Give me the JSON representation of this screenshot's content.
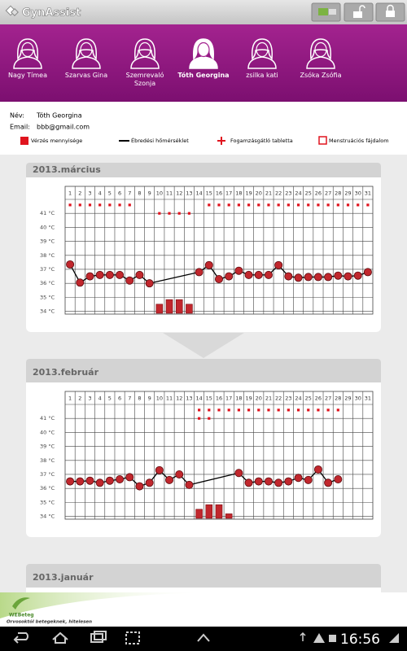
{
  "header": {
    "app_name": "GynAssist"
  },
  "tabs": [
    {
      "name": "Nagy Tímea"
    },
    {
      "name": "Szarvas Gina"
    },
    {
      "name": "Szemrevaló Szonja"
    },
    {
      "name": "Tóth Georgina"
    },
    {
      "name": "zsilka kati"
    },
    {
      "name": "Zsóka Zsófia"
    }
  ],
  "selected_tab": 3,
  "profile": {
    "name_label": "Név:",
    "name": "Tóth Georgina",
    "email_label": "Email:",
    "email": "bbb@gmail.com"
  },
  "legend": [
    {
      "label": "Vérzés mennyisége"
    },
    {
      "label": "Ébredési hőmérséklet"
    },
    {
      "label": "Fogamzásgátló tabletta"
    },
    {
      "label": "Menstruációs fájdalom"
    }
  ],
  "chart_data": [
    {
      "type": "line",
      "title": "2013.március",
      "x": [
        1,
        2,
        3,
        4,
        5,
        6,
        7,
        8,
        9,
        10,
        11,
        12,
        13,
        14,
        15,
        16,
        17,
        18,
        19,
        20,
        21,
        22,
        23,
        24,
        25,
        26,
        27,
        28,
        29,
        30,
        31
      ],
      "temperature": [
        37.35,
        36.05,
        36.5,
        36.6,
        36.6,
        36.6,
        36.2,
        36.6,
        36.0,
        null,
        null,
        null,
        null,
        36.8,
        37.3,
        36.3,
        36.5,
        36.9,
        36.6,
        36.6,
        36.6,
        37.3,
        36.5,
        36.4,
        36.45,
        36.45,
        36.45,
        36.55,
        36.5,
        36.55,
        36.8
      ],
      "bleeding": [
        null,
        null,
        null,
        null,
        null,
        null,
        null,
        null,
        null,
        2,
        3,
        3,
        2,
        null,
        null,
        null,
        null,
        null,
        null,
        null,
        null,
        null,
        null,
        null,
        null,
        null,
        null,
        null,
        null,
        null,
        null
      ],
      "tablet_days": [
        1,
        2,
        3,
        4,
        5,
        6,
        7,
        15,
        16,
        17,
        18,
        19,
        20,
        21,
        22,
        23,
        24,
        25,
        26,
        27,
        28,
        29,
        30,
        31
      ],
      "pain_days": [
        10,
        11,
        12,
        13
      ],
      "ylim": [
        33.8,
        42
      ],
      "yticks": [
        {
          "value": 34,
          "label": "34 °C"
        },
        {
          "value": 35,
          "label": "35 °C"
        },
        {
          "value": 36,
          "label": "36 °C"
        },
        {
          "value": 37,
          "label": "37 °C"
        },
        {
          "value": 38,
          "label": "38 °C"
        },
        {
          "value": 39,
          "label": "39 °C"
        },
        {
          "value": 40,
          "label": "40 °C"
        },
        {
          "value": 41,
          "label": "41 °C"
        }
      ],
      "grid": true,
      "point_color": "#c1272d",
      "line_color": "#000000",
      "bar_color": "#c1272d",
      "marker_color": "#e0141e"
    },
    {
      "type": "line",
      "title": "2013.február",
      "x": [
        1,
        2,
        3,
        4,
        5,
        6,
        7,
        8,
        9,
        10,
        11,
        12,
        13,
        14,
        15,
        16,
        17,
        18,
        19,
        20,
        21,
        22,
        23,
        24,
        25,
        26,
        27,
        28,
        29,
        30,
        31
      ],
      "temperature": [
        36.5,
        36.5,
        36.55,
        36.4,
        36.55,
        36.65,
        36.8,
        36.15,
        36.4,
        37.3,
        36.6,
        37.0,
        36.25,
        null,
        null,
        null,
        null,
        37.1,
        36.4,
        36.5,
        36.5,
        36.4,
        36.5,
        36.75,
        36.6,
        37.35,
        36.4,
        36.65,
        null,
        null,
        null
      ],
      "bleeding": [
        null,
        null,
        null,
        null,
        null,
        null,
        null,
        null,
        null,
        null,
        null,
        null,
        null,
        2,
        3,
        3,
        1,
        null,
        null,
        null,
        null,
        null,
        null,
        null,
        null,
        null,
        null,
        null,
        null,
        null,
        null
      ],
      "tablet_days": [
        14,
        15,
        16,
        17,
        18,
        19,
        20,
        21,
        22,
        23,
        24,
        25,
        26,
        27,
        28
      ],
      "pain_days": [
        14,
        15
      ],
      "ylim": [
        33.8,
        42
      ],
      "yticks": [
        {
          "value": 34,
          "label": "34 °C"
        },
        {
          "value": 35,
          "label": "35 °C"
        },
        {
          "value": 36,
          "label": "36 °C"
        },
        {
          "value": 37,
          "label": "37 °C"
        },
        {
          "value": 38,
          "label": "38 °C"
        },
        {
          "value": 39,
          "label": "39 °C"
        },
        {
          "value": 40,
          "label": "40 °C"
        },
        {
          "value": 41,
          "label": "41 °C"
        }
      ],
      "grid": true,
      "point_color": "#c1272d",
      "line_color": "#000000",
      "bar_color": "#c1272d",
      "marker_color": "#e0141e"
    },
    {
      "type": "line",
      "title": "2013.január"
    }
  ],
  "footer": {
    "brand": "WEBeteg",
    "tagline": "Orvosoktól betegeknek, hitelesen"
  },
  "status_bar": {
    "time": "16:56"
  }
}
